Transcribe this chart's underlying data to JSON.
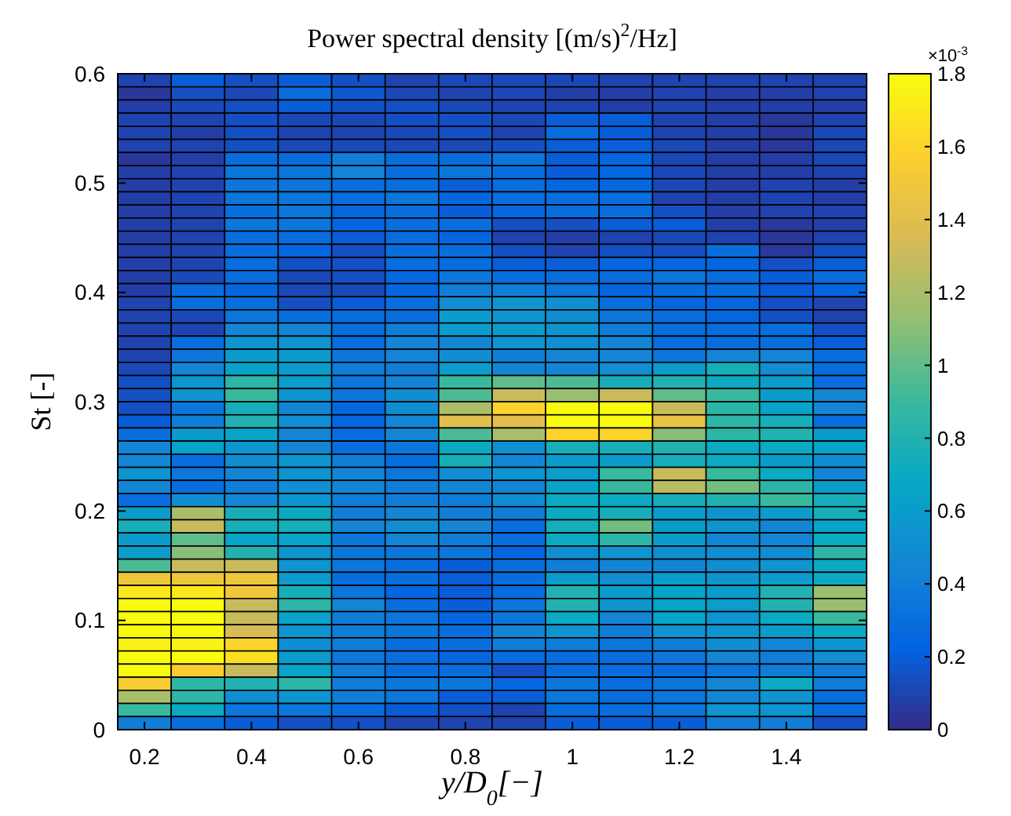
{
  "chart_data": {
    "type": "heatmap",
    "title": "Power spectral density [(m/s)$^{2}$/Hz]",
    "xlabel": "y/D$_{0}$[−]",
    "ylabel": "St [-]",
    "clabel": "×10$^{-3}$",
    "x": [
      0.2,
      0.3,
      0.4,
      0.5,
      0.6,
      0.7,
      0.8,
      0.9,
      1.0,
      1.1,
      1.2,
      1.3,
      1.4,
      1.5
    ],
    "xlim": [
      0.15,
      1.55
    ],
    "xticks": [
      0.2,
      0.4,
      0.6,
      0.8,
      1,
      1.2,
      1.4
    ],
    "ylim": [
      0,
      0.6
    ],
    "yticks": [
      0,
      0.1,
      0.2,
      0.3,
      0.4,
      0.5,
      0.6
    ],
    "clim": [
      0,
      1.8
    ],
    "cticks": [
      0,
      0.2,
      0.4,
      0.6,
      0.8,
      1,
      1.2,
      1.4,
      1.6,
      1.8
    ],
    "cells": [
      [
        0.1,
        0.2,
        0.15,
        0.2,
        0.15,
        0.1,
        0.12,
        0.12,
        0.12,
        0.1,
        0.1,
        0.1,
        0.1,
        0.1
      ],
      [
        0.05,
        0.15,
        0.12,
        0.3,
        0.18,
        0.12,
        0.1,
        0.12,
        0.08,
        0.08,
        0.1,
        0.08,
        0.08,
        0.1
      ],
      [
        0.08,
        0.12,
        0.15,
        0.2,
        0.15,
        0.15,
        0.12,
        0.1,
        0.1,
        0.08,
        0.1,
        0.08,
        0.08,
        0.08
      ],
      [
        0.1,
        0.1,
        0.15,
        0.12,
        0.12,
        0.15,
        0.15,
        0.12,
        0.2,
        0.2,
        0.1,
        0.08,
        0.05,
        0.1
      ],
      [
        0.1,
        0.08,
        0.15,
        0.1,
        0.1,
        0.12,
        0.15,
        0.1,
        0.3,
        0.2,
        0.1,
        0.08,
        0.05,
        0.12
      ],
      [
        0.1,
        0.1,
        0.15,
        0.12,
        0.12,
        0.12,
        0.12,
        0.15,
        0.2,
        0.2,
        0.12,
        0.08,
        0.05,
        0.12
      ],
      [
        0.05,
        0.08,
        0.3,
        0.3,
        0.4,
        0.3,
        0.3,
        0.35,
        0.2,
        0.25,
        0.12,
        0.08,
        0.08,
        0.12
      ],
      [
        0.08,
        0.1,
        0.35,
        0.35,
        0.45,
        0.3,
        0.35,
        0.3,
        0.2,
        0.25,
        0.12,
        0.08,
        0.08,
        0.1
      ],
      [
        0.08,
        0.1,
        0.35,
        0.35,
        0.3,
        0.3,
        0.2,
        0.3,
        0.25,
        0.25,
        0.12,
        0.08,
        0.1,
        0.08
      ],
      [
        0.08,
        0.1,
        0.35,
        0.35,
        0.3,
        0.35,
        0.25,
        0.3,
        0.3,
        0.3,
        0.1,
        0.08,
        0.1,
        0.08
      ],
      [
        0.08,
        0.1,
        0.3,
        0.35,
        0.25,
        0.3,
        0.2,
        0.25,
        0.3,
        0.3,
        0.15,
        0.08,
        0.1,
        0.1
      ],
      [
        0.08,
        0.1,
        0.35,
        0.35,
        0.25,
        0.3,
        0.3,
        0.15,
        0.15,
        0.2,
        0.2,
        0.08,
        0.05,
        0.08
      ],
      [
        0.08,
        0.1,
        0.3,
        0.3,
        0.2,
        0.3,
        0.25,
        0.1,
        0.08,
        0.1,
        0.12,
        0.1,
        0.05,
        0.1
      ],
      [
        0.08,
        0.1,
        0.3,
        0.25,
        0.15,
        0.3,
        0.3,
        0.15,
        0.1,
        0.15,
        0.15,
        0.3,
        0.05,
        0.15
      ],
      [
        0.08,
        0.1,
        0.3,
        0.15,
        0.15,
        0.3,
        0.3,
        0.2,
        0.2,
        0.25,
        0.25,
        0.25,
        0.15,
        0.2
      ],
      [
        0.08,
        0.12,
        0.3,
        0.12,
        0.15,
        0.25,
        0.35,
        0.3,
        0.3,
        0.3,
        0.35,
        0.3,
        0.2,
        0.3
      ],
      [
        0.08,
        0.3,
        0.25,
        0.12,
        0.12,
        0.25,
        0.4,
        0.4,
        0.35,
        0.25,
        0.3,
        0.3,
        0.2,
        0.25
      ],
      [
        0.1,
        0.3,
        0.3,
        0.15,
        0.2,
        0.3,
        0.5,
        0.55,
        0.5,
        0.3,
        0.25,
        0.25,
        0.15,
        0.1
      ],
      [
        0.1,
        0.12,
        0.35,
        0.3,
        0.3,
        0.3,
        0.6,
        0.55,
        0.5,
        0.35,
        0.3,
        0.25,
        0.15,
        0.1
      ],
      [
        0.1,
        0.1,
        0.45,
        0.45,
        0.3,
        0.4,
        0.6,
        0.6,
        0.55,
        0.4,
        0.3,
        0.3,
        0.3,
        0.15
      ],
      [
        0.1,
        0.3,
        0.55,
        0.55,
        0.3,
        0.45,
        0.45,
        0.55,
        0.5,
        0.45,
        0.3,
        0.3,
        0.3,
        0.2
      ],
      [
        0.1,
        0.35,
        0.6,
        0.6,
        0.35,
        0.45,
        0.5,
        0.4,
        0.45,
        0.45,
        0.35,
        0.45,
        0.45,
        0.3
      ],
      [
        0.12,
        0.45,
        0.65,
        0.6,
        0.4,
        0.4,
        0.6,
        0.45,
        0.45,
        0.5,
        0.6,
        0.75,
        0.5,
        0.3
      ],
      [
        0.15,
        0.55,
        0.85,
        0.6,
        0.35,
        0.45,
        0.9,
        1.0,
        0.95,
        0.75,
        0.8,
        0.7,
        0.6,
        0.3
      ],
      [
        0.15,
        0.55,
        0.9,
        0.55,
        0.35,
        0.5,
        0.95,
        1.3,
        1.15,
        1.3,
        1.0,
        0.9,
        0.6,
        0.45
      ],
      [
        0.15,
        0.35,
        0.75,
        0.45,
        0.25,
        0.5,
        1.2,
        1.6,
        1.8,
        1.8,
        1.3,
        0.85,
        0.65,
        0.45
      ],
      [
        0.2,
        0.4,
        0.8,
        0.5,
        0.25,
        0.45,
        1.4,
        1.4,
        1.8,
        1.8,
        1.45,
        0.85,
        0.75,
        0.3
      ],
      [
        0.3,
        0.6,
        0.65,
        0.45,
        0.3,
        0.45,
        0.95,
        1.2,
        1.6,
        1.6,
        1.1,
        0.85,
        0.8,
        0.6
      ],
      [
        0.45,
        0.65,
        0.55,
        0.45,
        0.3,
        0.35,
        0.7,
        0.5,
        0.75,
        0.75,
        0.8,
        0.7,
        0.7,
        0.65
      ],
      [
        0.45,
        0.3,
        0.5,
        0.55,
        0.4,
        0.3,
        0.75,
        0.45,
        0.6,
        0.6,
        0.75,
        0.7,
        0.6,
        0.5
      ],
      [
        0.55,
        0.35,
        0.45,
        0.55,
        0.45,
        0.35,
        0.5,
        0.55,
        0.6,
        0.9,
        1.3,
        0.9,
        0.7,
        0.45
      ],
      [
        0.45,
        0.3,
        0.4,
        0.5,
        0.45,
        0.4,
        0.45,
        0.45,
        0.65,
        0.9,
        1.25,
        1.05,
        0.85,
        0.6
      ],
      [
        0.3,
        0.5,
        0.45,
        0.55,
        0.4,
        0.4,
        0.4,
        0.5,
        0.7,
        0.7,
        0.75,
        0.8,
        0.9,
        0.75
      ],
      [
        0.6,
        1.2,
        0.75,
        0.7,
        0.4,
        0.45,
        0.4,
        0.4,
        0.7,
        0.75,
        0.6,
        0.55,
        0.6,
        0.75
      ],
      [
        0.75,
        1.3,
        0.75,
        0.75,
        0.45,
        0.5,
        0.45,
        0.3,
        0.75,
        1.05,
        0.6,
        0.55,
        0.45,
        0.65
      ],
      [
        0.6,
        1.0,
        0.65,
        0.65,
        0.35,
        0.45,
        0.4,
        0.3,
        0.7,
        0.85,
        0.6,
        0.45,
        0.45,
        0.7
      ],
      [
        0.6,
        1.1,
        0.8,
        0.55,
        0.35,
        0.35,
        0.35,
        0.25,
        0.5,
        0.55,
        0.5,
        0.5,
        0.5,
        0.85
      ],
      [
        0.95,
        1.3,
        1.3,
        0.55,
        0.35,
        0.3,
        0.2,
        0.3,
        0.4,
        0.45,
        0.45,
        0.5,
        0.55,
        0.7
      ],
      [
        1.5,
        1.5,
        1.5,
        0.6,
        0.3,
        0.3,
        0.2,
        0.3,
        0.6,
        0.5,
        0.6,
        0.55,
        0.6,
        0.7
      ],
      [
        1.7,
        1.7,
        1.5,
        0.75,
        0.35,
        0.25,
        0.2,
        0.3,
        0.8,
        0.6,
        0.65,
        0.6,
        0.8,
        1.15
      ],
      [
        1.8,
        1.8,
        1.3,
        0.85,
        0.45,
        0.3,
        0.2,
        0.35,
        0.8,
        0.55,
        0.65,
        0.6,
        0.8,
        1.15
      ],
      [
        1.8,
        1.8,
        1.3,
        0.65,
        0.4,
        0.35,
        0.25,
        0.35,
        0.7,
        0.45,
        0.65,
        0.55,
        0.7,
        0.9
      ],
      [
        1.8,
        1.8,
        1.35,
        0.55,
        0.4,
        0.35,
        0.3,
        0.45,
        0.55,
        0.4,
        0.55,
        0.55,
        0.6,
        0.7
      ],
      [
        1.75,
        1.75,
        1.6,
        0.5,
        0.4,
        0.3,
        0.3,
        0.4,
        0.4,
        0.35,
        0.4,
        0.5,
        0.45,
        0.55
      ],
      [
        1.8,
        1.8,
        1.65,
        0.6,
        0.35,
        0.3,
        0.25,
        0.3,
        0.3,
        0.3,
        0.35,
        0.45,
        0.4,
        0.5
      ],
      [
        1.8,
        1.55,
        1.3,
        0.65,
        0.4,
        0.3,
        0.3,
        0.15,
        0.3,
        0.3,
        0.3,
        0.35,
        0.4,
        0.4
      ],
      [
        1.55,
        0.85,
        0.8,
        0.85,
        0.4,
        0.35,
        0.35,
        0.25,
        0.35,
        0.3,
        0.35,
        0.45,
        0.7,
        0.4
      ],
      [
        1.2,
        0.85,
        0.5,
        0.55,
        0.4,
        0.35,
        0.2,
        0.2,
        0.35,
        0.3,
        0.35,
        0.45,
        0.55,
        0.3
      ],
      [
        0.9,
        0.7,
        0.35,
        0.35,
        0.3,
        0.2,
        0.15,
        0.1,
        0.3,
        0.3,
        0.35,
        0.55,
        0.55,
        0.3
      ],
      [
        0.4,
        0.3,
        0.2,
        0.15,
        0.15,
        0.1,
        0.1,
        0.1,
        0.2,
        0.2,
        0.2,
        0.4,
        0.4,
        0.15
      ]
    ]
  }
}
